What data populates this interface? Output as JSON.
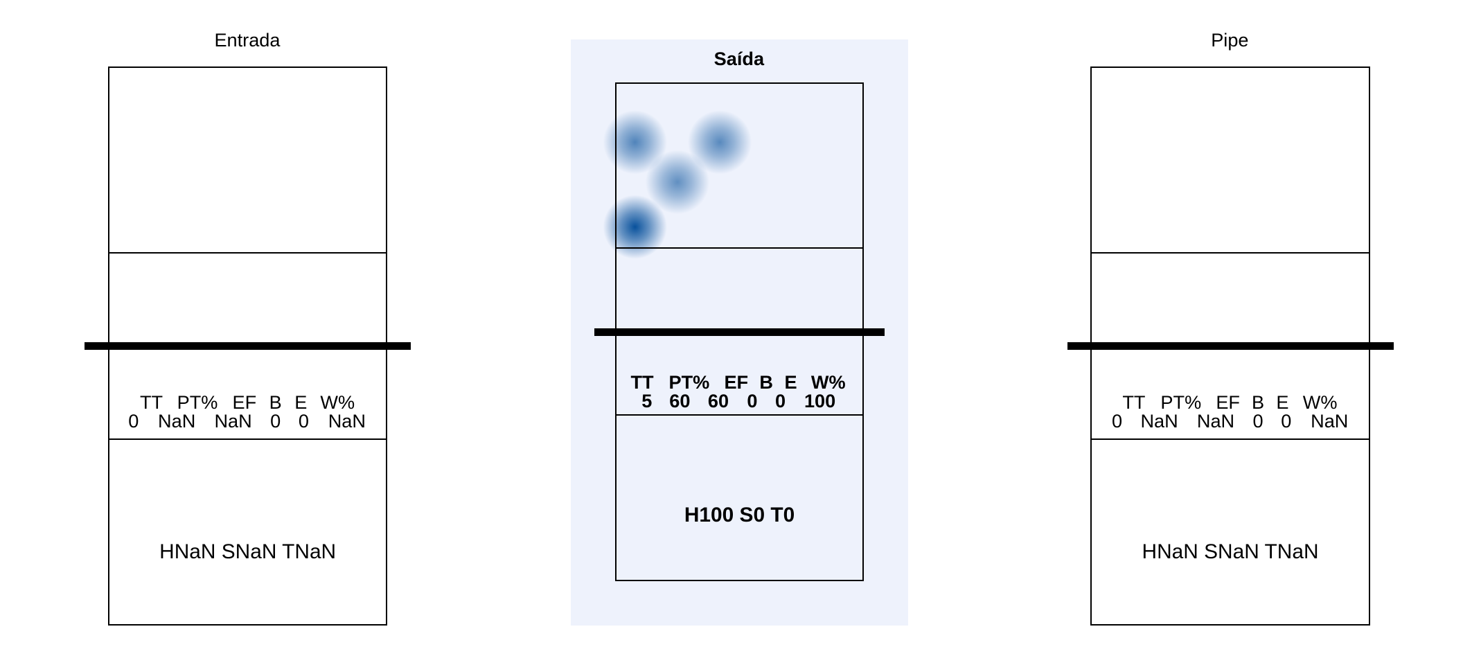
{
  "colors": {
    "highlight_bg": "#eef2fc",
    "heat": "#08519c",
    "line": "#000000"
  },
  "chart_data": [
    {
      "type": "heatmap",
      "title": "Entrada",
      "highlighted": false,
      "stats_headers": [
        "TT",
        "PT%",
        "EF",
        "B",
        "E",
        "W%"
      ],
      "stats_values": [
        "0",
        "NaN",
        "NaN",
        "0",
        "0",
        "NaN"
      ],
      "summary": "HNaN SNaN TNaN",
      "hotspots": []
    },
    {
      "type": "heatmap",
      "title": "Saída",
      "highlighted": true,
      "stats_headers": [
        "TT",
        "PT%",
        "EF",
        "B",
        "E",
        "W%"
      ],
      "stats_values": [
        "5",
        "60",
        "60",
        "0",
        "0",
        "100"
      ],
      "summary": "H100 S0 T0",
      "hotspots": [
        {
          "x": 0.08,
          "y": 0.12,
          "intensity": 0.55
        },
        {
          "x": 0.42,
          "y": 0.12,
          "intensity": 0.5
        },
        {
          "x": 0.25,
          "y": 0.2,
          "intensity": 0.45
        },
        {
          "x": 0.08,
          "y": 0.29,
          "intensity": 1.0
        }
      ]
    },
    {
      "type": "heatmap",
      "title": "Pipe",
      "highlighted": false,
      "stats_headers": [
        "TT",
        "PT%",
        "EF",
        "B",
        "E",
        "W%"
      ],
      "stats_values": [
        "0",
        "NaN",
        "NaN",
        "0",
        "0",
        "NaN"
      ],
      "summary": "HNaN SNaN TNaN",
      "hotspots": []
    }
  ]
}
